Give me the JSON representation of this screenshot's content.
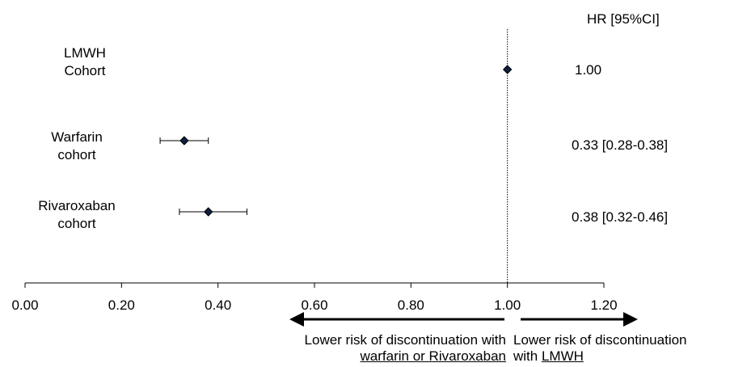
{
  "chart_data": {
    "type": "forest",
    "hr_header": "HR [95%CI]",
    "rows": [
      {
        "label_lines": [
          "LMWH",
          "Cohort"
        ],
        "hr": 1.0,
        "ci": null,
        "text": "1.00"
      },
      {
        "label_lines": [
          "Warfarin",
          "cohort"
        ],
        "hr": 0.33,
        "ci": [
          0.28,
          0.38
        ],
        "text": "0.33 [0.28-0.38]"
      },
      {
        "label_lines": [
          "Rivaroxaban",
          "cohort"
        ],
        "hr": 0.38,
        "ci": [
          0.32,
          0.46
        ],
        "text": "0.38 [0.32-0.46]"
      }
    ],
    "xlim": [
      0.0,
      1.2
    ],
    "x_ticks": [
      "0.00",
      "0.20",
      "0.40",
      "0.60",
      "0.80",
      "1.00",
      "1.20"
    ],
    "reference_line": 1.0,
    "annotations": {
      "left_line1": "Lower risk of discontinuation with",
      "left_line2": "warfarin or Rivaroxaban",
      "right_line1": "Lower risk of discontinuation",
      "right_prefix": "with ",
      "right_underlined": "LMWH"
    }
  }
}
